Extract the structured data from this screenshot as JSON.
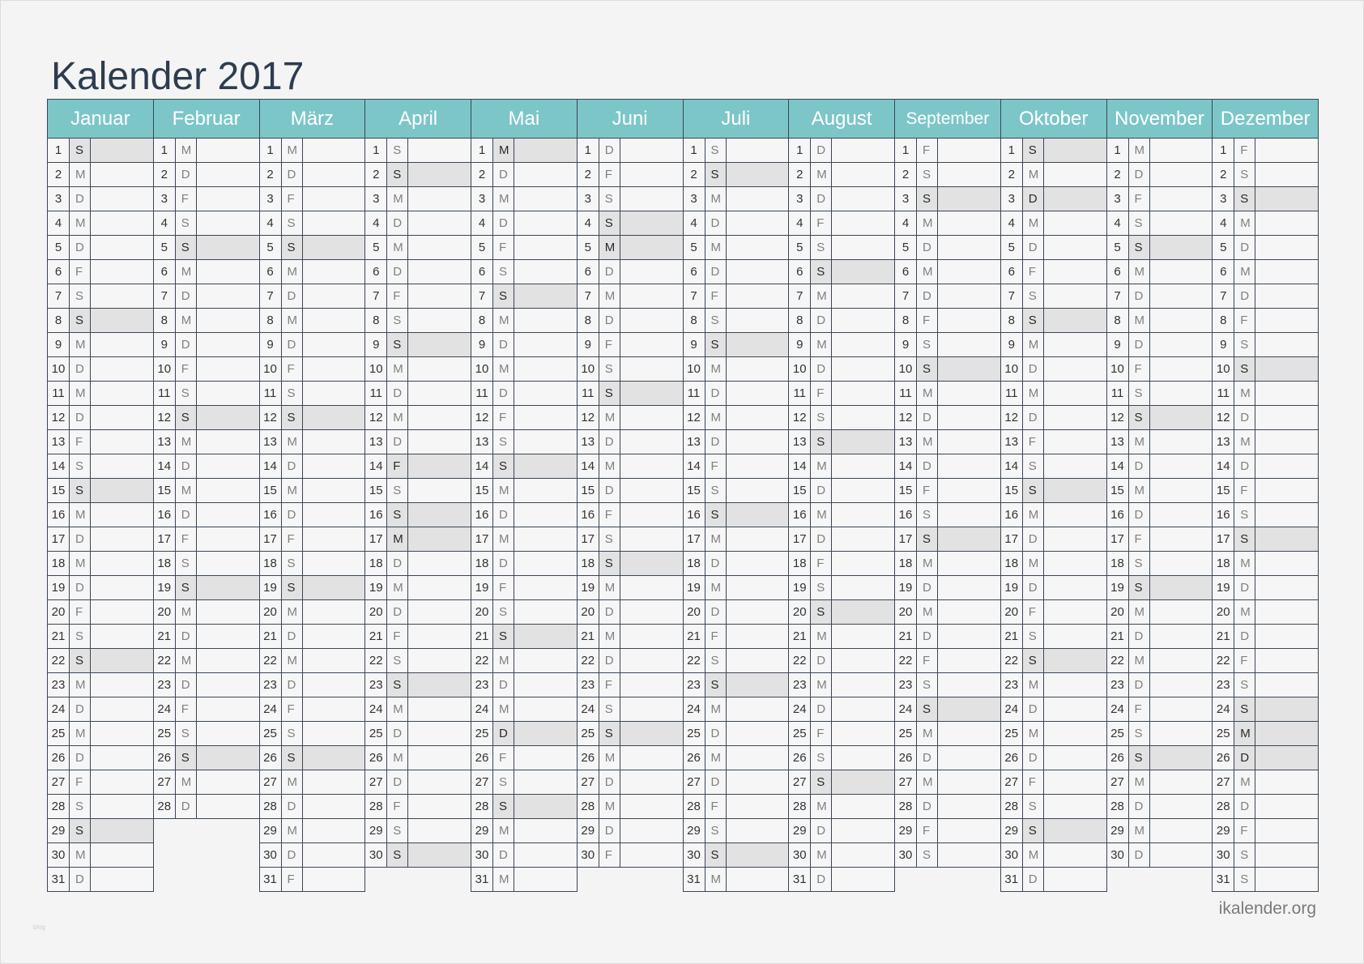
{
  "title": "Kalender 2017",
  "brand": "ikalender.org",
  "watermark": "blog",
  "colors": {
    "header": "#7dc6c8",
    "grid_lines": "#3a4757",
    "shaded": "#e2e2e2",
    "title": "#2d3c4e"
  },
  "months": [
    {
      "name": "Januar",
      "days": [
        1,
        2,
        3,
        4,
        5,
        6,
        7,
        8,
        9,
        10,
        11,
        12,
        13,
        14,
        15,
        16,
        17,
        18,
        19,
        20,
        21,
        22,
        23,
        24,
        25,
        26,
        27,
        28,
        29,
        30,
        31
      ],
      "weekdays": [
        "S",
        "M",
        "D",
        "M",
        "D",
        "F",
        "S",
        "S",
        "M",
        "D",
        "M",
        "D",
        "F",
        "S",
        "S",
        "M",
        "D",
        "M",
        "D",
        "F",
        "S",
        "S",
        "M",
        "D",
        "M",
        "D",
        "F",
        "S",
        "S",
        "M",
        "D"
      ],
      "shaded": [
        1,
        8,
        15,
        22,
        29
      ]
    },
    {
      "name": "Februar",
      "days": [
        1,
        2,
        3,
        4,
        5,
        6,
        7,
        8,
        9,
        10,
        11,
        12,
        13,
        14,
        15,
        16,
        17,
        18,
        19,
        20,
        21,
        22,
        23,
        24,
        25,
        26,
        27,
        28
      ],
      "weekdays": [
        "M",
        "D",
        "F",
        "S",
        "S",
        "M",
        "D",
        "M",
        "D",
        "F",
        "S",
        "S",
        "M",
        "D",
        "M",
        "D",
        "F",
        "S",
        "S",
        "M",
        "D",
        "M",
        "D",
        "F",
        "S",
        "S",
        "M",
        "D"
      ],
      "shaded": [
        5,
        12,
        19,
        26
      ]
    },
    {
      "name": "März",
      "days": [
        1,
        2,
        3,
        4,
        5,
        6,
        7,
        8,
        9,
        10,
        11,
        12,
        13,
        14,
        15,
        16,
        17,
        18,
        19,
        20,
        21,
        22,
        23,
        24,
        25,
        26,
        27,
        28,
        29,
        30,
        31
      ],
      "weekdays": [
        "M",
        "D",
        "F",
        "S",
        "S",
        "M",
        "D",
        "M",
        "D",
        "F",
        "S",
        "S",
        "M",
        "D",
        "M",
        "D",
        "F",
        "S",
        "S",
        "M",
        "D",
        "M",
        "D",
        "F",
        "S",
        "S",
        "M",
        "D",
        "M",
        "D",
        "F"
      ],
      "shaded": [
        5,
        12,
        19,
        26
      ]
    },
    {
      "name": "April",
      "days": [
        1,
        2,
        3,
        4,
        5,
        6,
        7,
        8,
        9,
        10,
        11,
        12,
        13,
        14,
        15,
        16,
        17,
        18,
        19,
        20,
        21,
        22,
        23,
        24,
        25,
        26,
        27,
        28,
        29,
        30
      ],
      "weekdays": [
        "S",
        "S",
        "M",
        "D",
        "M",
        "D",
        "F",
        "S",
        "S",
        "M",
        "D",
        "M",
        "D",
        "F",
        "S",
        "S",
        "M",
        "D",
        "M",
        "D",
        "F",
        "S",
        "S",
        "M",
        "D",
        "M",
        "D",
        "F",
        "S",
        "S"
      ],
      "shaded": [
        2,
        9,
        14,
        16,
        17,
        23,
        30
      ]
    },
    {
      "name": "Mai",
      "days": [
        1,
        2,
        3,
        4,
        5,
        6,
        7,
        8,
        9,
        10,
        11,
        12,
        13,
        14,
        15,
        16,
        17,
        18,
        19,
        20,
        21,
        22,
        23,
        24,
        25,
        26,
        27,
        28,
        29,
        30,
        31
      ],
      "weekdays": [
        "M",
        "D",
        "M",
        "D",
        "F",
        "S",
        "S",
        "M",
        "D",
        "M",
        "D",
        "F",
        "S",
        "S",
        "M",
        "D",
        "M",
        "D",
        "F",
        "S",
        "S",
        "M",
        "D",
        "M",
        "D",
        "F",
        "S",
        "S",
        "M",
        "D",
        "M"
      ],
      "shaded": [
        1,
        7,
        14,
        21,
        25,
        28
      ]
    },
    {
      "name": "Juni",
      "days": [
        1,
        2,
        3,
        4,
        5,
        6,
        7,
        8,
        9,
        10,
        11,
        12,
        13,
        14,
        15,
        16,
        17,
        18,
        19,
        20,
        21,
        22,
        23,
        24,
        25,
        26,
        27,
        28,
        29,
        30
      ],
      "weekdays": [
        "D",
        "F",
        "S",
        "S",
        "M",
        "D",
        "M",
        "D",
        "F",
        "S",
        "S",
        "M",
        "D",
        "M",
        "D",
        "F",
        "S",
        "S",
        "M",
        "D",
        "M",
        "D",
        "F",
        "S",
        "S",
        "M",
        "D",
        "M",
        "D",
        "F"
      ],
      "shaded": [
        4,
        5,
        11,
        18,
        25
      ]
    },
    {
      "name": "Juli",
      "days": [
        1,
        2,
        3,
        4,
        5,
        6,
        7,
        8,
        9,
        10,
        11,
        12,
        13,
        14,
        15,
        16,
        17,
        18,
        19,
        20,
        21,
        22,
        23,
        24,
        25,
        26,
        27,
        28,
        29,
        30,
        31
      ],
      "weekdays": [
        "S",
        "S",
        "M",
        "D",
        "M",
        "D",
        "F",
        "S",
        "S",
        "M",
        "D",
        "M",
        "D",
        "F",
        "S",
        "S",
        "M",
        "D",
        "M",
        "D",
        "F",
        "S",
        "S",
        "M",
        "D",
        "M",
        "D",
        "F",
        "S",
        "S",
        "M"
      ],
      "shaded": [
        2,
        9,
        16,
        23,
        30
      ]
    },
    {
      "name": "August",
      "days": [
        1,
        2,
        3,
        4,
        5,
        6,
        7,
        8,
        9,
        10,
        11,
        12,
        13,
        14,
        15,
        16,
        17,
        18,
        19,
        20,
        21,
        22,
        23,
        24,
        25,
        26,
        27,
        28,
        29,
        30,
        31
      ],
      "weekdays": [
        "D",
        "M",
        "D",
        "F",
        "S",
        "S",
        "M",
        "D",
        "M",
        "D",
        "F",
        "S",
        "S",
        "M",
        "D",
        "M",
        "D",
        "F",
        "S",
        "S",
        "M",
        "D",
        "M",
        "D",
        "F",
        "S",
        "S",
        "M",
        "D",
        "M",
        "D"
      ],
      "shaded": [
        6,
        13,
        20,
        27
      ]
    },
    {
      "name": "September",
      "days": [
        1,
        2,
        3,
        4,
        5,
        6,
        7,
        8,
        9,
        10,
        11,
        12,
        13,
        14,
        15,
        16,
        17,
        18,
        19,
        20,
        21,
        22,
        23,
        24,
        25,
        26,
        27,
        28,
        29,
        30
      ],
      "weekdays": [
        "F",
        "S",
        "S",
        "M",
        "D",
        "M",
        "D",
        "F",
        "S",
        "S",
        "M",
        "D",
        "M",
        "D",
        "F",
        "S",
        "S",
        "M",
        "D",
        "M",
        "D",
        "F",
        "S",
        "S",
        "M",
        "D",
        "M",
        "D",
        "F",
        "S"
      ],
      "shaded": [
        3,
        10,
        17,
        24
      ]
    },
    {
      "name": "Oktober",
      "days": [
        1,
        2,
        3,
        4,
        5,
        6,
        7,
        8,
        9,
        10,
        11,
        12,
        13,
        14,
        15,
        16,
        17,
        18,
        19,
        20,
        21,
        22,
        23,
        24,
        25,
        26,
        27,
        28,
        29,
        30,
        31
      ],
      "weekdays": [
        "S",
        "M",
        "D",
        "M",
        "D",
        "F",
        "S",
        "S",
        "M",
        "D",
        "M",
        "D",
        "F",
        "S",
        "S",
        "M",
        "D",
        "M",
        "D",
        "F",
        "S",
        "S",
        "M",
        "D",
        "M",
        "D",
        "F",
        "S",
        "S",
        "M",
        "D"
      ],
      "shaded": [
        1,
        3,
        8,
        15,
        22,
        29
      ]
    },
    {
      "name": "November",
      "days": [
        1,
        2,
        3,
        4,
        5,
        6,
        7,
        8,
        9,
        10,
        11,
        12,
        13,
        14,
        15,
        16,
        17,
        18,
        19,
        20,
        21,
        22,
        23,
        24,
        25,
        26,
        27,
        28,
        29,
        30
      ],
      "weekdays": [
        "M",
        "D",
        "F",
        "S",
        "S",
        "M",
        "D",
        "M",
        "D",
        "F",
        "S",
        "S",
        "M",
        "D",
        "M",
        "D",
        "F",
        "S",
        "S",
        "M",
        "D",
        "M",
        "D",
        "F",
        "S",
        "S",
        "M",
        "D",
        "M",
        "D"
      ],
      "shaded": [
        5,
        12,
        19,
        26
      ]
    },
    {
      "name": "Dezember",
      "days": [
        1,
        2,
        3,
        4,
        5,
        6,
        7,
        8,
        9,
        10,
        11,
        12,
        13,
        14,
        15,
        16,
        17,
        18,
        19,
        20,
        21,
        22,
        23,
        24,
        25,
        26,
        27,
        28,
        29,
        30,
        31
      ],
      "weekdays": [
        "F",
        "S",
        "S",
        "M",
        "D",
        "M",
        "D",
        "F",
        "S",
        "S",
        "M",
        "D",
        "M",
        "D",
        "F",
        "S",
        "S",
        "M",
        "D",
        "M",
        "D",
        "F",
        "S",
        "S",
        "M",
        "D",
        "M",
        "D",
        "F",
        "S",
        "S"
      ],
      "shaded": [
        3,
        10,
        17,
        24,
        25,
        26
      ]
    }
  ]
}
